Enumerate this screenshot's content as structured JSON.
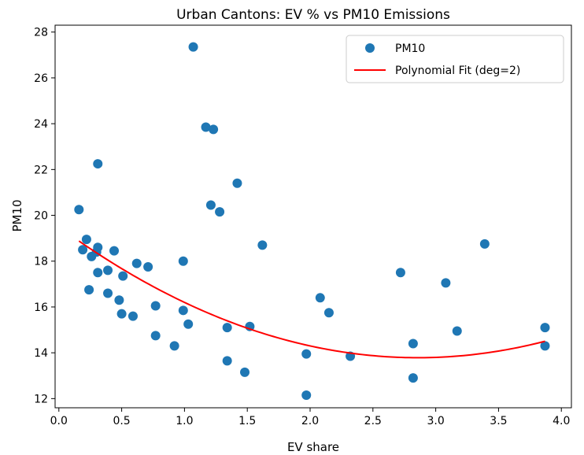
{
  "chart_data": {
    "type": "scatter",
    "title": "Urban Cantons: EV % vs PM10 Emissions",
    "xlabel": "EV share",
    "ylabel": "PM10",
    "xlim": [
      -0.03,
      4.08
    ],
    "ylim": [
      11.6,
      28.3
    ],
    "xticks": [
      0.0,
      0.5,
      1.0,
      1.5,
      2.0,
      2.5,
      3.0,
      3.5,
      4.0
    ],
    "xtick_labels": [
      "0.0",
      "0.5",
      "1.0",
      "1.5",
      "2.0",
      "2.5",
      "3.0",
      "3.5",
      "4.0"
    ],
    "yticks": [
      12,
      14,
      16,
      18,
      20,
      22,
      24,
      26,
      28
    ],
    "ytick_labels": [
      "12",
      "14",
      "16",
      "18",
      "20",
      "22",
      "24",
      "26",
      "28"
    ],
    "grid": false,
    "legend_position": "top-right",
    "series": [
      {
        "name": "PM10",
        "kind": "scatter",
        "color": "#1f77b4",
        "points": [
          [
            0.16,
            20.25
          ],
          [
            0.19,
            18.5
          ],
          [
            0.22,
            18.95
          ],
          [
            0.24,
            16.75
          ],
          [
            0.26,
            18.2
          ],
          [
            0.3,
            18.4
          ],
          [
            0.31,
            18.6
          ],
          [
            0.31,
            22.25
          ],
          [
            0.31,
            17.5
          ],
          [
            0.39,
            17.6
          ],
          [
            0.39,
            16.6
          ],
          [
            0.44,
            18.45
          ],
          [
            0.48,
            16.3
          ],
          [
            0.5,
            15.7
          ],
          [
            0.51,
            17.35
          ],
          [
            0.59,
            15.6
          ],
          [
            0.62,
            17.9
          ],
          [
            0.71,
            17.75
          ],
          [
            0.77,
            16.05
          ],
          [
            0.77,
            14.75
          ],
          [
            0.92,
            14.3
          ],
          [
            0.99,
            15.85
          ],
          [
            0.99,
            18.0
          ],
          [
            1.03,
            15.25
          ],
          [
            1.07,
            27.35
          ],
          [
            1.17,
            23.85
          ],
          [
            1.21,
            20.45
          ],
          [
            1.23,
            23.75
          ],
          [
            1.28,
            20.15
          ],
          [
            1.34,
            15.1
          ],
          [
            1.34,
            13.65
          ],
          [
            1.42,
            21.4
          ],
          [
            1.48,
            13.15
          ],
          [
            1.52,
            15.15
          ],
          [
            1.62,
            18.7
          ],
          [
            1.97,
            13.95
          ],
          [
            1.97,
            12.15
          ],
          [
            2.08,
            16.4
          ],
          [
            2.15,
            15.75
          ],
          [
            2.32,
            13.85
          ],
          [
            2.72,
            17.5
          ],
          [
            2.82,
            14.4
          ],
          [
            2.82,
            12.9
          ],
          [
            3.08,
            17.05
          ],
          [
            3.17,
            14.95
          ],
          [
            3.39,
            18.75
          ],
          [
            3.87,
            15.1
          ],
          [
            3.87,
            14.3
          ]
        ]
      },
      {
        "name": "Polynomial Fit (deg=2)",
        "kind": "line",
        "color": "#ff0000",
        "polynomial": [
          0.7,
          -4.0,
          19.5
        ],
        "x_range": [
          0.16,
          3.87
        ]
      }
    ]
  }
}
